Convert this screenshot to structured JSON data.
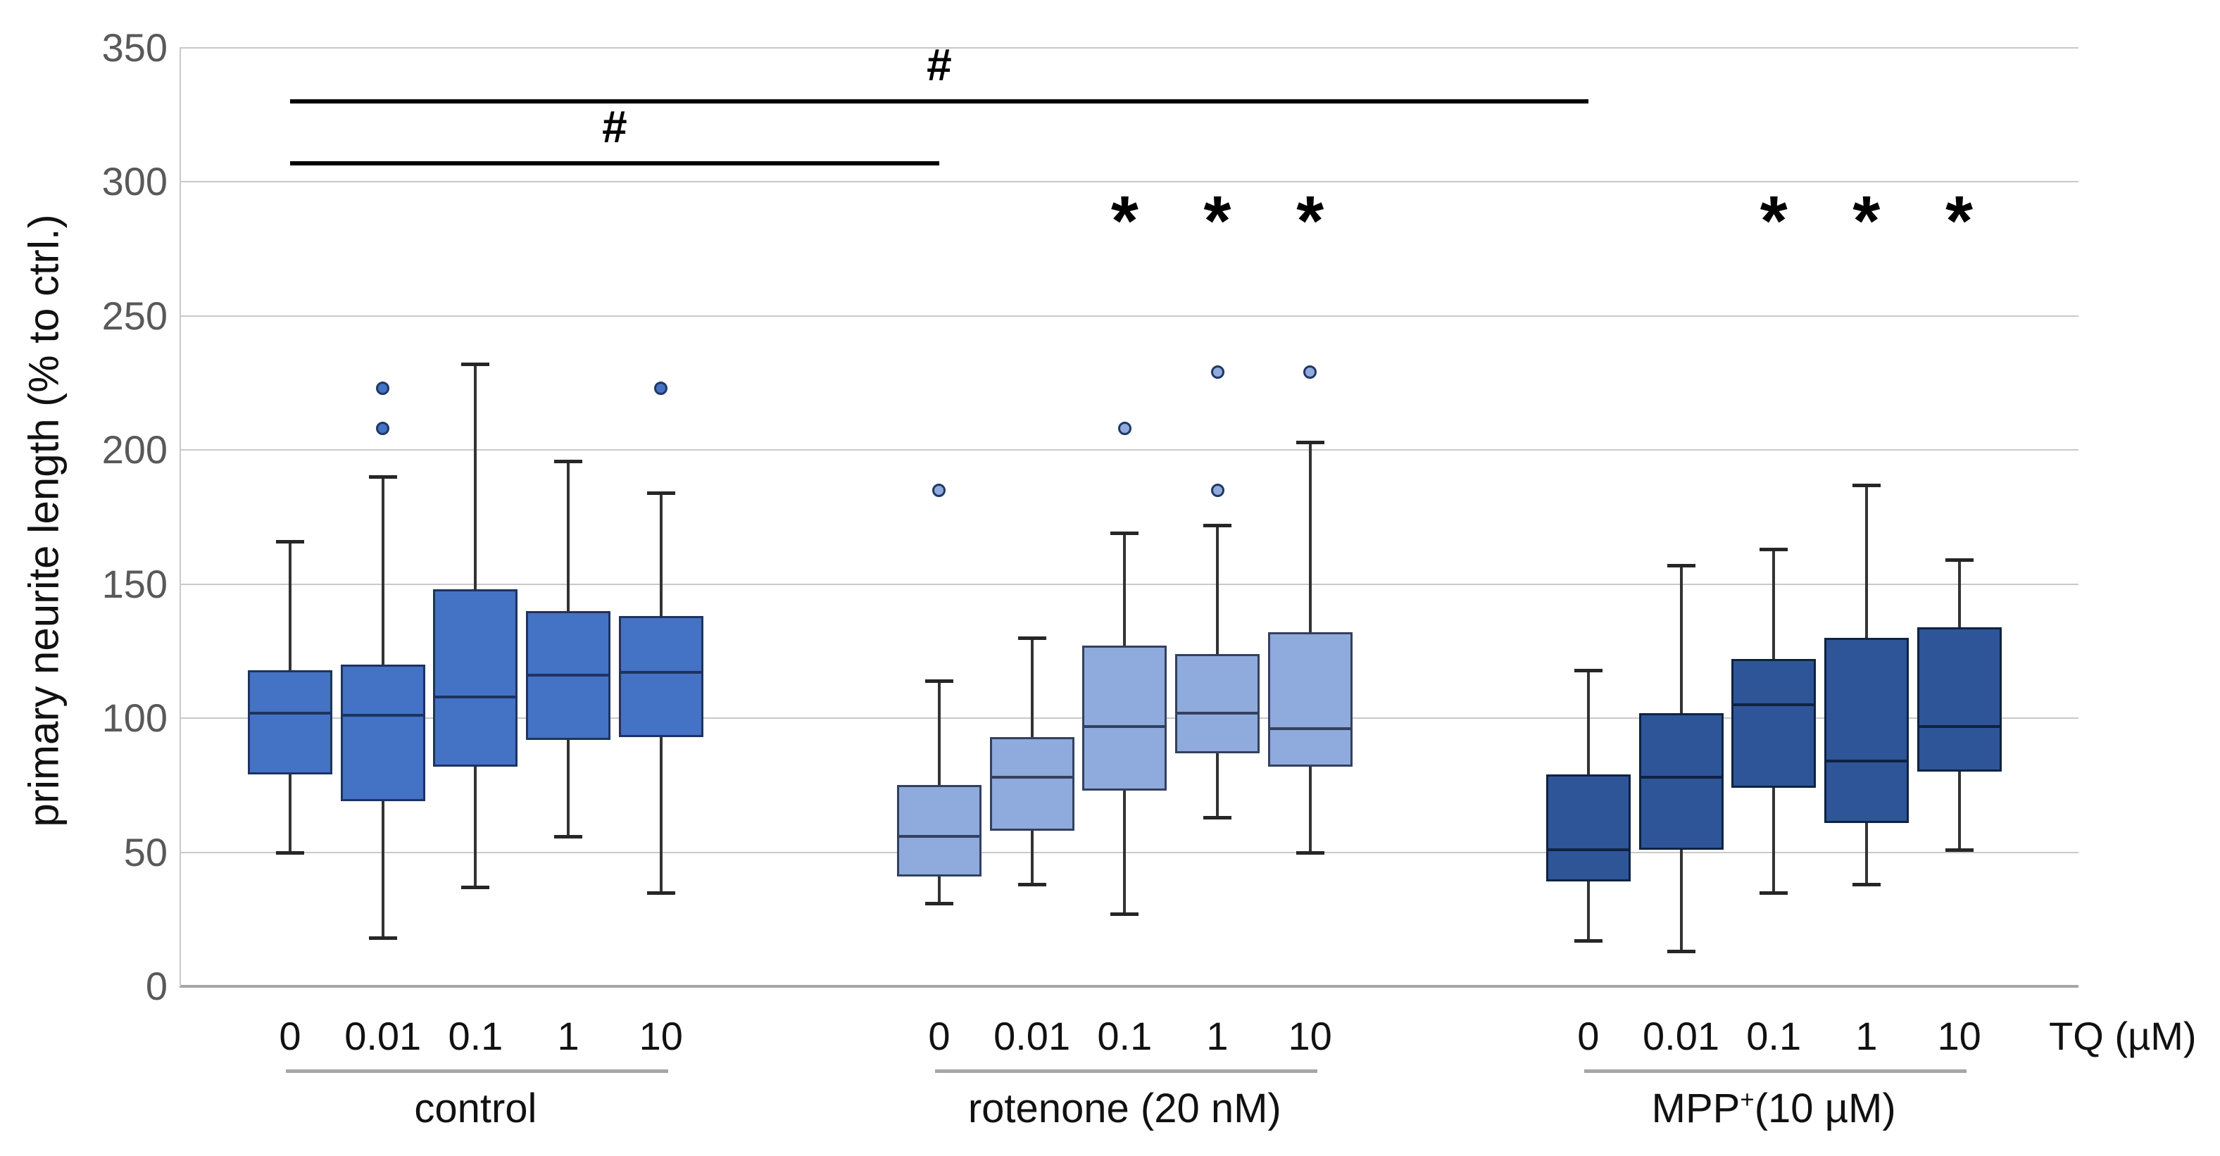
{
  "figure": {
    "y_axis_title": "primary neurite length (% to ctrl.)",
    "x_axis_unit_label": "TQ (µM)"
  },
  "chart_data": {
    "type": "boxplot",
    "title": "",
    "ylabel": "primary neurite length (% to ctrl.)",
    "xlabel": "TQ (µM)",
    "ylim": [
      0,
      350
    ],
    "y_ticks": [
      0,
      50,
      100,
      150,
      200,
      250,
      300,
      350
    ],
    "grid": "horizontal",
    "legend": "none",
    "tq_categories": [
      "0",
      "0.01",
      "0.1",
      "1",
      "10"
    ],
    "groups": [
      {
        "name": "control",
        "label_parts": [
          {
            "t": "control"
          }
        ],
        "fill": "#4472C4",
        "edge": "#1D3461",
        "boxes": [
          {
            "tq": "0",
            "low": 50,
            "q1": 79,
            "median": 102,
            "q3": 118,
            "high": 166,
            "outliers": []
          },
          {
            "tq": "0.01",
            "low": 18,
            "q1": 69,
            "median": 101,
            "q3": 120,
            "high": 190,
            "outliers": [
              208,
              223
            ]
          },
          {
            "tq": "0.1",
            "low": 37,
            "q1": 82,
            "median": 108,
            "q3": 148,
            "high": 232,
            "outliers": []
          },
          {
            "tq": "1",
            "low": 56,
            "q1": 92,
            "median": 116,
            "q3": 140,
            "high": 196,
            "outliers": []
          },
          {
            "tq": "10",
            "low": 35,
            "q1": 93,
            "median": 117,
            "q3": 138,
            "high": 184,
            "outliers": [
              223
            ]
          }
        ]
      },
      {
        "name": "rotenone",
        "label_parts": [
          {
            "t": "rotenone (20 nM)"
          }
        ],
        "fill": "#8FAADC",
        "edge": "#33415F",
        "boxes": [
          {
            "tq": "0",
            "low": 31,
            "q1": 41,
            "median": 56,
            "q3": 75,
            "high": 114,
            "outliers": [
              185
            ]
          },
          {
            "tq": "0.01",
            "low": 38,
            "q1": 58,
            "median": 78,
            "q3": 93,
            "high": 130,
            "outliers": []
          },
          {
            "tq": "0.1",
            "low": 27,
            "q1": 73,
            "median": 97,
            "q3": 127,
            "high": 169,
            "outliers": [
              208
            ]
          },
          {
            "tq": "1",
            "low": 63,
            "q1": 87,
            "median": 102,
            "q3": 124,
            "high": 172,
            "outliers": [
              185,
              229
            ]
          },
          {
            "tq": "10",
            "low": 50,
            "q1": 82,
            "median": 96,
            "q3": 132,
            "high": 203,
            "outliers": [
              229
            ]
          }
        ]
      },
      {
        "name": "mpp",
        "label_parts": [
          {
            "t": "MPP"
          },
          {
            "t": "+",
            "sup": true
          },
          {
            "t": "(10 µM)"
          }
        ],
        "fill": "#2E5597",
        "edge": "#0F2342",
        "boxes": [
          {
            "tq": "0",
            "low": 17,
            "q1": 39,
            "median": 51,
            "q3": 79,
            "high": 118,
            "outliers": []
          },
          {
            "tq": "0.01",
            "low": 13,
            "q1": 51,
            "median": 78,
            "q3": 102,
            "high": 157,
            "outliers": []
          },
          {
            "tq": "0.1",
            "low": 35,
            "q1": 74,
            "median": 105,
            "q3": 122,
            "high": 163,
            "outliers": []
          },
          {
            "tq": "1",
            "low": 38,
            "q1": 61,
            "median": 84,
            "q3": 130,
            "high": 187,
            "outliers": []
          },
          {
            "tq": "10",
            "low": 51,
            "q1": 80,
            "median": 97,
            "q3": 134,
            "high": 159,
            "outliers": []
          }
        ]
      }
    ],
    "significance": {
      "hash_symbol": "#",
      "star_symbol": "*",
      "hash_lines": [
        {
          "from_group": "control",
          "from_tq": "0",
          "to_group": "mpp",
          "to_tq": "0",
          "y": 330
        },
        {
          "from_group": "control",
          "from_tq": "0",
          "to_group": "rotenone",
          "to_tq": "0",
          "y": 307
        }
      ],
      "stars": [
        {
          "group": "rotenone",
          "tq": "0.1",
          "y": 291
        },
        {
          "group": "rotenone",
          "tq": "1",
          "y": 291
        },
        {
          "group": "rotenone",
          "tq": "10",
          "y": 291
        },
        {
          "group": "mpp",
          "tq": "0.1",
          "y": 291
        },
        {
          "group": "mpp",
          "tq": "1",
          "y": 291
        },
        {
          "group": "mpp",
          "tq": "10",
          "y": 291
        }
      ]
    }
  }
}
